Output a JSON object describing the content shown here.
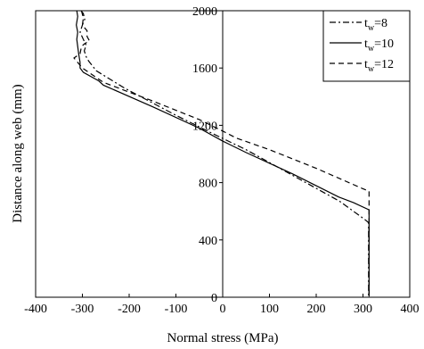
{
  "chart_data": {
    "type": "line",
    "title": "",
    "xlabel": "Normal stress (MPa)",
    "ylabel": "Distance along web (mm)",
    "xlim": [
      -400,
      400
    ],
    "ylim": [
      0,
      2000
    ],
    "x_ticks": [
      -400,
      -300,
      -200,
      -100,
      0,
      100,
      200,
      300,
      400
    ],
    "y_ticks": [
      0,
      400,
      800,
      1200,
      1600,
      2000
    ],
    "grid": false,
    "legend_position": "top-right",
    "legend_label_prefix": "t",
    "legend_label_subscript": "w",
    "series": [
      {
        "name": "t_w=8",
        "legend_value": "=8",
        "style": "dash-dot",
        "points": [
          [
            -303,
            2000
          ],
          [
            -298,
            1980
          ],
          [
            -295,
            1940
          ],
          [
            -300,
            1900
          ],
          [
            -305,
            1850
          ],
          [
            -298,
            1800
          ],
          [
            -292,
            1760
          ],
          [
            -296,
            1720
          ],
          [
            -292,
            1680
          ],
          [
            -287,
            1650
          ],
          [
            -270,
            1580
          ],
          [
            -210,
            1460
          ],
          [
            -100,
            1270
          ],
          [
            -20,
            1140
          ],
          [
            50,
            1030
          ],
          [
            150,
            850
          ],
          [
            250,
            670
          ],
          [
            305,
            540
          ],
          [
            312,
            520
          ],
          [
            312,
            5
          ]
        ]
      },
      {
        "name": "t_w=10",
        "legend_value": "=10",
        "style": "solid",
        "points": [
          [
            -312,
            2000
          ],
          [
            -310,
            1960
          ],
          [
            -313,
            1900
          ],
          [
            -310,
            1850
          ],
          [
            -312,
            1800
          ],
          [
            -310,
            1750
          ],
          [
            -308,
            1700
          ],
          [
            -305,
            1640
          ],
          [
            -305,
            1600
          ],
          [
            -298,
            1570
          ],
          [
            -265,
            1510
          ],
          [
            -255,
            1480
          ],
          [
            -150,
            1330
          ],
          [
            -50,
            1180
          ],
          [
            0,
            1090
          ],
          [
            50,
            1010
          ],
          [
            150,
            860
          ],
          [
            248,
            700
          ],
          [
            280,
            660
          ],
          [
            313,
            610
          ],
          [
            313,
            5
          ]
        ]
      },
      {
        "name": "t_w=12",
        "legend_value": "=12",
        "style": "dashed",
        "points": [
          [
            -302,
            2000
          ],
          [
            -298,
            1950
          ],
          [
            -300,
            1900
          ],
          [
            -290,
            1860
          ],
          [
            -290,
            1820
          ],
          [
            -285,
            1790
          ],
          [
            -295,
            1770
          ],
          [
            -302,
            1750
          ],
          [
            -305,
            1700
          ],
          [
            -318,
            1670
          ],
          [
            -300,
            1600
          ],
          [
            -255,
            1500
          ],
          [
            -150,
            1370
          ],
          [
            -50,
            1240
          ],
          [
            0,
            1160
          ],
          [
            30,
            1110
          ],
          [
            100,
            1030
          ],
          [
            200,
            900
          ],
          [
            298,
            760
          ],
          [
            313,
            740
          ],
          [
            313,
            5
          ]
        ]
      }
    ]
  }
}
